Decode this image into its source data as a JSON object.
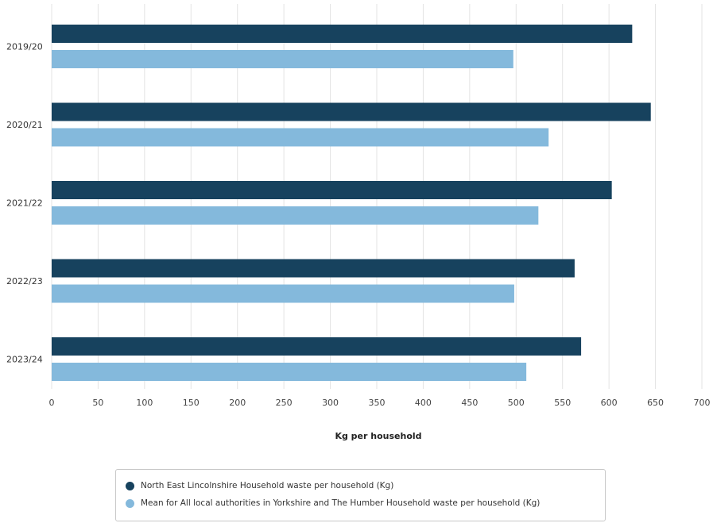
{
  "chart_data": {
    "type": "bar",
    "orientation": "horizontal",
    "categories": [
      "2019/20",
      "2020/21",
      "2021/22",
      "2022/23",
      "2023/24"
    ],
    "series": [
      {
        "name": "North East Lincolnshire Household waste per household (Kg)",
        "color": "#17425e",
        "values": [
          625,
          645,
          603,
          563,
          570
        ]
      },
      {
        "name": "Mean for All local authorities in Yorkshire and The Humber Household waste per household (Kg)",
        "color": "#84b9dc",
        "values": [
          497,
          535,
          524,
          498,
          511
        ]
      }
    ],
    "xticks": [
      "0",
      "50",
      "100",
      "150",
      "200",
      "250",
      "300",
      "350",
      "400",
      "450",
      "500",
      "550",
      "600",
      "650",
      "700"
    ],
    "xlim": [
      0,
      700
    ],
    "xlabel": "Kg per household",
    "ylabel": "",
    "title": "",
    "grid": "vertical",
    "legend_position": "bottom"
  }
}
